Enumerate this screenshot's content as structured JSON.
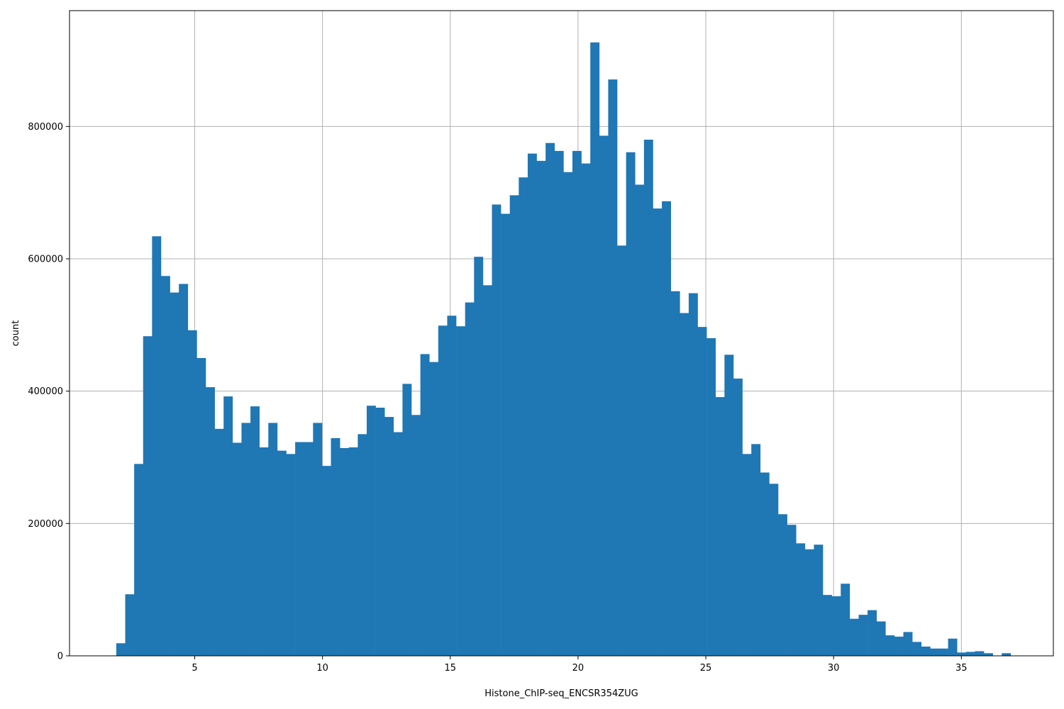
{
  "chart_data": {
    "type": "bar",
    "subtype": "histogram",
    "xlabel": "Histone_ChIP-seq_ENCSR354ZUG",
    "ylabel": "count",
    "xlim": [
      0.1,
      38.6
    ],
    "ylim": [
      0,
      975000
    ],
    "grid": true,
    "bar_color": "#1f77b4",
    "grid_color": "#b0b0b0",
    "bin_start": 1.93,
    "bin_width": 0.35,
    "x_ticks": [
      5,
      10,
      15,
      20,
      25,
      30,
      35
    ],
    "x_tick_labels": [
      "5",
      "10",
      "15",
      "20",
      "25",
      "30",
      "35"
    ],
    "y_ticks": [
      0,
      200000,
      400000,
      600000,
      800000
    ],
    "y_tick_labels": [
      "0",
      "200000",
      "400000",
      "600000",
      "800000"
    ],
    "values": [
      19000,
      93000,
      290000,
      483000,
      634000,
      574000,
      549000,
      562000,
      492000,
      450000,
      406000,
      343000,
      392000,
      322000,
      352000,
      377000,
      315000,
      352000,
      310000,
      305000,
      323000,
      323000,
      352000,
      287000,
      329000,
      314000,
      315000,
      335000,
      378000,
      375000,
      361000,
      338000,
      411000,
      364000,
      456000,
      444000,
      499000,
      514000,
      498000,
      534000,
      603000,
      560000,
      682000,
      668000,
      696000,
      723000,
      759000,
      748000,
      775000,
      763000,
      731000,
      763000,
      744000,
      927000,
      786000,
      871000,
      620000,
      761000,
      712000,
      780000,
      676000,
      687000,
      551000,
      518000,
      548000,
      497000,
      480000,
      391000,
      455000,
      419000,
      305000,
      320000,
      277000,
      260000,
      214000,
      198000,
      170000,
      161000,
      168000,
      92000,
      90000,
      109000,
      56000,
      62000,
      69000,
      52000,
      31000,
      29000,
      36000,
      21000,
      14000,
      11000,
      11000,
      26000,
      5000,
      6000,
      7000,
      4000,
      0,
      4000
    ]
  }
}
